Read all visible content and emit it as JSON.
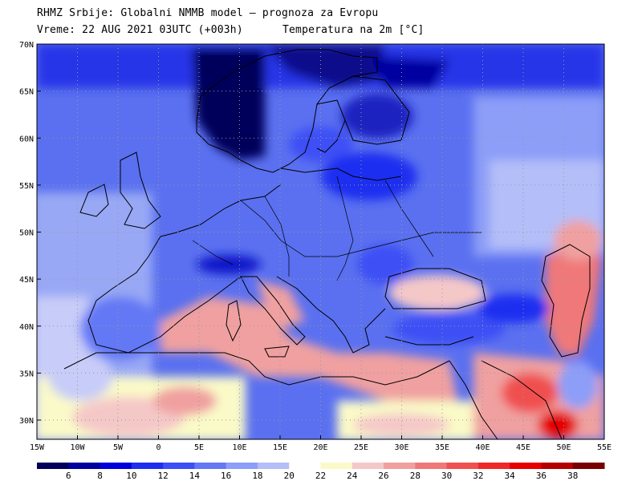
{
  "header": {
    "line1": "RHMZ Srbije: Globalni NMMB model — prognoza za Evropu",
    "line2": "Vreme: 22 AUG 2021 03UTC (+003h)",
    "line3": "Temperatura na 2m [°C]"
  },
  "axes": {
    "lat_labels": [
      "70N",
      "65N",
      "60N",
      "55N",
      "50N",
      "45N",
      "40N",
      "35N",
      "30N"
    ],
    "lon_labels": [
      "15W",
      "10W",
      "5W",
      "0",
      "5E",
      "10E",
      "15E",
      "20E",
      "25E",
      "30E",
      "35E",
      "40E",
      "45E",
      "50E",
      "55E"
    ]
  },
  "legend": {
    "labels": [
      "6",
      "8",
      "10",
      "12",
      "14",
      "16",
      "18",
      "20",
      "22",
      "24",
      "26",
      "28",
      "30",
      "32",
      "34",
      "36",
      "38"
    ],
    "colors": [
      "#00005a",
      "#0000a0",
      "#0000dc",
      "#1e2ef0",
      "#3c50f5",
      "#6478f5",
      "#8c9ef8",
      "#b4bef8",
      "#ffffff",
      "#fafac8",
      "#f5c8c8",
      "#f0a0a0",
      "#f07878",
      "#f05050",
      "#f02828",
      "#e60000",
      "#b40000",
      "#780000"
    ]
  }
}
